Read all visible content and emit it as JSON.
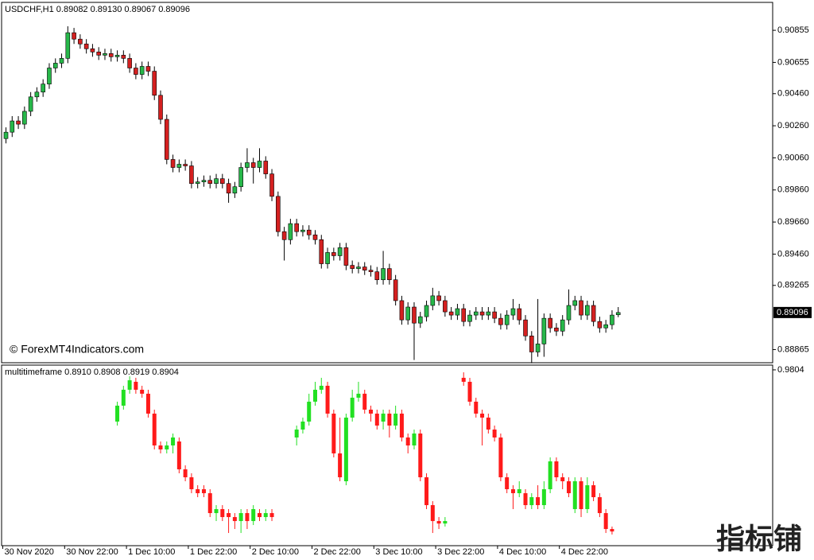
{
  "chart_data": [
    {
      "type": "candlestick",
      "title": "USDCHF,H1  0.89082 0.89130 0.89067 0.89096",
      "up_color": "#27b84a",
      "down_color": "#d42020",
      "open": [
        0.9018,
        0.9022,
        0.9029,
        0.9027,
        0.9035,
        0.9044,
        0.9047,
        0.9052,
        0.9062,
        0.9065,
        0.9068,
        0.9084,
        0.908,
        0.9077,
        0.9074,
        0.9072,
        0.907,
        0.9071,
        0.9069,
        0.907,
        0.9068,
        0.9062,
        0.9058,
        0.9063,
        0.906,
        0.9045,
        0.903,
        0.9005,
        0.9,
        0.9002,
        0.9001,
        0.899,
        0.8991,
        0.8992,
        0.899,
        0.8993,
        0.899,
        0.8984,
        0.8988,
        0.9,
        0.9003,
        0.9,
        0.9004,
        0.8996,
        0.8982,
        0.896,
        0.8955,
        0.8965,
        0.896,
        0.8961,
        0.8958,
        0.8955,
        0.894,
        0.8947,
        0.8945,
        0.895,
        0.8939,
        0.8937,
        0.8938,
        0.8936,
        0.8935,
        0.893,
        0.8937,
        0.893,
        0.8917,
        0.8905,
        0.8913,
        0.8903,
        0.8907,
        0.8914,
        0.892,
        0.8917,
        0.891,
        0.8908,
        0.8912,
        0.8904,
        0.8908,
        0.891,
        0.8908,
        0.891,
        0.8906,
        0.8902,
        0.8908,
        0.8912,
        0.8905,
        0.8895,
        0.8885,
        0.889,
        0.8906,
        0.89,
        0.8898,
        0.8905,
        0.8914,
        0.8917,
        0.8908,
        0.8914,
        0.8904,
        0.89,
        0.8902,
        0.89082
      ],
      "high": [
        0.9025,
        0.9032,
        0.9032,
        0.9038,
        0.9047,
        0.905,
        0.9055,
        0.9065,
        0.9068,
        0.9071,
        0.9088,
        0.9087,
        0.9083,
        0.908,
        0.9077,
        0.9075,
        0.9074,
        0.9074,
        0.9073,
        0.9073,
        0.9071,
        0.9065,
        0.9066,
        0.9066,
        0.9063,
        0.9048,
        0.9033,
        0.9008,
        0.9005,
        0.9005,
        0.9004,
        0.8994,
        0.8995,
        0.8995,
        0.8996,
        0.8996,
        0.8993,
        0.8991,
        0.9003,
        0.9012,
        0.9006,
        0.9012,
        0.9007,
        0.8999,
        0.8985,
        0.8963,
        0.8968,
        0.8968,
        0.8964,
        0.8964,
        0.8961,
        0.8958,
        0.895,
        0.895,
        0.8953,
        0.8953,
        0.8942,
        0.8941,
        0.8941,
        0.8939,
        0.8938,
        0.8948,
        0.894,
        0.8933,
        0.892,
        0.8916,
        0.8916,
        0.891,
        0.8917,
        0.8925,
        0.8923,
        0.892,
        0.8913,
        0.8915,
        0.8915,
        0.8911,
        0.8913,
        0.8913,
        0.8913,
        0.8913,
        0.8909,
        0.8911,
        0.8918,
        0.8915,
        0.8908,
        0.8898,
        0.8918,
        0.8909,
        0.8909,
        0.8903,
        0.8908,
        0.8924,
        0.892,
        0.892,
        0.8917,
        0.8917,
        0.8907,
        0.8905,
        0.8911,
        0.8913
      ],
      "low": [
        0.9015,
        0.9019,
        0.9024,
        0.9024,
        0.9032,
        0.9041,
        0.9044,
        0.9049,
        0.9059,
        0.9062,
        0.9065,
        0.9077,
        0.9074,
        0.9071,
        0.9069,
        0.9067,
        0.9067,
        0.9066,
        0.9066,
        0.9065,
        0.9059,
        0.9055,
        0.9055,
        0.9057,
        0.9042,
        0.9027,
        0.9002,
        0.8997,
        0.8997,
        0.8998,
        0.8987,
        0.8987,
        0.8988,
        0.8987,
        0.8987,
        0.8987,
        0.8978,
        0.8981,
        0.8985,
        0.8997,
        0.899,
        0.8997,
        0.8993,
        0.8979,
        0.8957,
        0.8942,
        0.8952,
        0.8957,
        0.8957,
        0.8955,
        0.8952,
        0.8937,
        0.8937,
        0.8942,
        0.8942,
        0.8936,
        0.8934,
        0.8934,
        0.8933,
        0.8932,
        0.8927,
        0.8927,
        0.8927,
        0.8914,
        0.8902,
        0.8902,
        0.888,
        0.89,
        0.8904,
        0.8911,
        0.8914,
        0.8907,
        0.8905,
        0.8905,
        0.8901,
        0.8901,
        0.8905,
        0.8905,
        0.8905,
        0.8903,
        0.8899,
        0.8899,
        0.8905,
        0.8902,
        0.8892,
        0.8878,
        0.8882,
        0.8882,
        0.8897,
        0.8895,
        0.8895,
        0.8902,
        0.8911,
        0.8905,
        0.8905,
        0.8901,
        0.8897,
        0.8897,
        0.8899,
        0.89067
      ],
      "close": [
        0.9022,
        0.9029,
        0.9027,
        0.9035,
        0.9044,
        0.9047,
        0.9052,
        0.9062,
        0.9065,
        0.9068,
        0.9084,
        0.908,
        0.9077,
        0.9074,
        0.9072,
        0.907,
        0.9071,
        0.9069,
        0.907,
        0.9068,
        0.9062,
        0.9058,
        0.9063,
        0.906,
        0.9045,
        0.903,
        0.9005,
        0.9,
        0.9002,
        0.9001,
        0.899,
        0.8991,
        0.8992,
        0.899,
        0.8993,
        0.899,
        0.8984,
        0.8988,
        0.9,
        0.9003,
        0.9,
        0.9004,
        0.8996,
        0.8982,
        0.896,
        0.8955,
        0.8965,
        0.896,
        0.8961,
        0.8958,
        0.8955,
        0.894,
        0.8947,
        0.8945,
        0.895,
        0.8939,
        0.8937,
        0.8938,
        0.8936,
        0.8935,
        0.893,
        0.8937,
        0.893,
        0.8917,
        0.8905,
        0.8913,
        0.8903,
        0.8907,
        0.8914,
        0.892,
        0.8917,
        0.891,
        0.8908,
        0.8912,
        0.8904,
        0.8908,
        0.891,
        0.8908,
        0.891,
        0.8906,
        0.8902,
        0.8908,
        0.8912,
        0.8905,
        0.8895,
        0.8885,
        0.889,
        0.8906,
        0.89,
        0.8898,
        0.8905,
        0.8914,
        0.8917,
        0.8908,
        0.8914,
        0.8904,
        0.89,
        0.8902,
        0.8908,
        0.89096
      ],
      "ylim": [
        0.88783,
        0.91029
      ],
      "yticks": [
        0.90855,
        0.90655,
        {
          "value": 0.9046,
          "label": "0.90460"
        },
        {
          "value": 0.9026,
          "label": "0.90260"
        },
        {
          "value": 0.9006,
          "label": "0.90060"
        },
        {
          "value": 0.8986,
          "label": "0.89860"
        },
        {
          "value": 0.8966,
          "label": "0.89660"
        },
        {
          "value": 0.8946,
          "label": "0.89460"
        },
        0.89265,
        0.88865
      ],
      "xticks": [
        {
          "value": 0,
          "label": "30 Nov 2020"
        },
        {
          "value": 10,
          "label": "30 Nov 22:00"
        },
        {
          "value": 20,
          "label": "1 Dec 10:00"
        },
        {
          "value": 30,
          "label": "1 Dec 22:00"
        },
        {
          "value": 40,
          "label": "2 Dec 10:00"
        },
        {
          "value": 50,
          "label": "2 Dec 22:00"
        },
        {
          "value": 60,
          "label": "3 Dec 10:00"
        },
        {
          "value": 70,
          "label": "3 Dec 22:00"
        },
        {
          "value": 80,
          "label": "4 Dec 10:00"
        },
        {
          "value": 90,
          "label": "4 Dec 22:00"
        }
      ]
    },
    {
      "type": "candlestick",
      "title": "multitimeframe 0.8910 0.8908 0.8919 0.8904",
      "up_color": "#22e022",
      "down_color": "#ff1a1a",
      "open": [
        null,
        null,
        null,
        null,
        null,
        null,
        null,
        null,
        null,
        null,
        null,
        null,
        null,
        null,
        null,
        null,
        null,
        null,
        0.9531,
        0.9615,
        0.9699,
        0.9741,
        0.9699,
        0.9678,
        0.9573,
        0.9405,
        0.9384,
        0.9405,
        0.9426,
        0.9279,
        0.9237,
        0.9174,
        0.9174,
        0.9153,
        0.9048,
        0.9069,
        0.9048,
        0.9027,
        0.9006,
        0.9048,
        0.9006,
        0.9048,
        0.9027,
        0.9048,
        null,
        null,
        null,
        0.9447,
        0.9489,
        0.9531,
        0.9636,
        0.9699,
        0.972,
        0.9573,
        0.9363,
        0.9216,
        0.9552,
        0.9657,
        0.9678,
        0.9594,
        0.9573,
        0.9531,
        0.9573,
        0.951,
        0.9573,
        0.9447,
        0.9405,
        0.9468,
        0.9237,
        0.909,
        0.9006,
        0.8993,
        null,
        null,
        0.9762,
        0.9741,
        0.9636,
        0.9573,
        0.9552,
        0.9489,
        0.9447,
        0.9237,
        0.9174,
        0.9153,
        0.9153,
        0.909,
        0.9132,
        0.909,
        0.9174,
        0.9321,
        0.9237,
        0.9216,
        0.9069,
        0.9216,
        0.9069,
        0.9195,
        0.9132,
        0.9048,
        0.8964,
        null
      ],
      "high": [
        null,
        null,
        null,
        null,
        null,
        null,
        null,
        null,
        null,
        null,
        null,
        null,
        null,
        null,
        null,
        null,
        null,
        null,
        0.9636,
        0.972,
        0.977,
        0.9762,
        0.972,
        0.9699,
        0.9594,
        0.9426,
        0.9426,
        0.9468,
        0.9447,
        0.93,
        0.9258,
        0.9195,
        0.9195,
        0.9174,
        0.909,
        0.909,
        0.9069,
        0.9048,
        0.9069,
        0.9069,
        0.909,
        0.9069,
        0.9069,
        0.9069,
        null,
        null,
        null,
        0.951,
        0.9552,
        0.9678,
        0.9741,
        0.9762,
        0.9741,
        0.9594,
        0.9552,
        0.9573,
        0.9699,
        0.9741,
        0.9699,
        0.9615,
        0.9594,
        0.9594,
        0.9594,
        0.9615,
        0.9594,
        0.9468,
        0.9489,
        0.9489,
        0.9258,
        0.9111,
        0.9027,
        0.9027,
        null,
        null,
        0.9791,
        0.9762,
        0.9657,
        0.9594,
        0.9573,
        0.951,
        0.9468,
        0.9258,
        0.9195,
        0.9216,
        0.9174,
        0.9153,
        0.9195,
        0.9216,
        0.9342,
        0.9342,
        0.9258,
        0.9237,
        0.9237,
        0.9237,
        0.9237,
        0.9216,
        0.9153,
        0.9069,
        0.8977,
        null
      ],
      "low": [
        null,
        null,
        null,
        null,
        null,
        null,
        null,
        null,
        null,
        null,
        null,
        null,
        null,
        null,
        null,
        null,
        null,
        null,
        0.951,
        0.9594,
        0.9678,
        0.9678,
        0.9657,
        0.9552,
        0.9384,
        0.9363,
        0.9363,
        0.9363,
        0.9258,
        0.9216,
        0.9153,
        0.9132,
        0.9132,
        0.9027,
        0.9006,
        0.9006,
        0.8943,
        0.8964,
        0.8943,
        0.8964,
        0.8985,
        0.9006,
        0.9006,
        0.9006,
        null,
        null,
        null,
        0.9405,
        0.9468,
        0.951,
        0.9615,
        0.9678,
        0.9552,
        0.9342,
        0.9216,
        0.9195,
        0.9531,
        0.9636,
        0.9573,
        0.9531,
        0.9489,
        0.9489,
        0.9447,
        0.9489,
        0.9426,
        0.9363,
        0.9384,
        0.9216,
        0.9069,
        0.8943,
        0.8964,
        0.8977,
        null,
        null,
        0.972,
        0.9615,
        0.9552,
        0.9405,
        0.9468,
        0.9426,
        0.9216,
        0.9153,
        0.9069,
        0.9132,
        0.9069,
        0.9069,
        0.9069,
        0.9069,
        0.9153,
        0.9216,
        0.9174,
        0.9132,
        0.9048,
        0.9027,
        0.9048,
        0.9111,
        0.9027,
        0.8943,
        0.8935,
        null
      ],
      "close": [
        null,
        null,
        null,
        null,
        null,
        null,
        null,
        null,
        null,
        null,
        null,
        null,
        null,
        null,
        null,
        null,
        null,
        null,
        0.9615,
        0.9699,
        0.9749,
        0.9699,
        0.9678,
        0.9573,
        0.9405,
        0.9384,
        0.9405,
        0.9447,
        0.9279,
        0.9237,
        0.9174,
        0.9153,
        0.9153,
        0.9048,
        0.9069,
        0.9027,
        0.9027,
        0.9006,
        0.9048,
        0.9006,
        0.9069,
        0.9027,
        0.9048,
        0.9027,
        null,
        null,
        null,
        0.9489,
        0.9531,
        0.9636,
        0.9699,
        0.972,
        0.9573,
        0.9363,
        0.9237,
        0.9552,
        0.9657,
        0.9678,
        0.9594,
        0.9573,
        0.951,
        0.9573,
        0.951,
        0.9573,
        0.9447,
        0.9405,
        0.9468,
        0.9237,
        0.909,
        0.9006,
        0.8993,
        0.9006,
        null,
        null,
        0.9741,
        0.9636,
        0.9573,
        0.9552,
        0.9489,
        0.9447,
        0.9237,
        0.9174,
        0.9153,
        0.9174,
        0.909,
        0.9132,
        0.909,
        0.9174,
        0.9321,
        0.9237,
        0.9216,
        0.9153,
        0.9216,
        0.9069,
        0.9195,
        0.9132,
        0.9048,
        0.8964,
        0.8951,
        null
      ],
      "ylim": [
        0.8876,
        0.9829
      ],
      "yticks": [
        0.9804
      ]
    }
  ],
  "watermark": "© ForexMT4Indicators.com",
  "logo": "指标铺"
}
